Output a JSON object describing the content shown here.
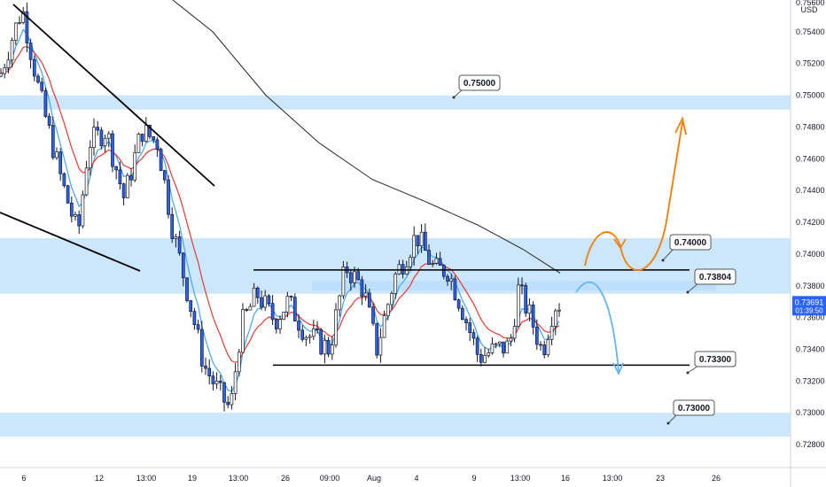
{
  "chart_data": {
    "type": "candlestick",
    "currency": "USD",
    "price_scale": {
      "ylim": [
        0.727,
        0.756
      ],
      "ticks": [
        "0.75400",
        "0.75200",
        "0.75000",
        "0.74800",
        "0.74600",
        "0.74400",
        "0.74200",
        "0.74000",
        "0.73800",
        "0.73600",
        "0.73400",
        "0.73200",
        "0.73000",
        "0.72800"
      ],
      "top_partial_label": "0.75600"
    },
    "time_axis": {
      "labels": [
        "6",
        "12",
        "13:00",
        "19",
        "13:00",
        "26",
        "09:00",
        "Aug",
        "4",
        "9",
        "13:00",
        "16",
        "13:00",
        "23",
        "26"
      ]
    },
    "current_price": {
      "value": "0.73691",
      "countdown": "01:39:50",
      "price": 0.73691
    },
    "zones": [
      {
        "low": 0.7491,
        "high": 0.75
      },
      {
        "low": 0.7375,
        "high": 0.741
      },
      {
        "low": 0.7377,
        "high": 0.7383
      },
      {
        "low": 0.7285,
        "high": 0.73
      }
    ],
    "levels": [
      {
        "label": "0.75000",
        "price": 0.75
      },
      {
        "label": "0.74000",
        "price": 0.74
      },
      {
        "label": "0.73804",
        "price": 0.73804
      },
      {
        "label": "0.73300",
        "price": 0.733
      },
      {
        "label": "0.73000",
        "price": 0.73
      }
    ],
    "range": {
      "top": 0.739,
      "bottom": 0.733
    },
    "colors": {
      "zone": "#bbdefb",
      "up": "#ffffff",
      "down": "#2962ff",
      "wick": "#131722",
      "ema_fast": "#42a5f5",
      "ema_slow": "#e53935",
      "sma_long": "#212121",
      "bull_arrow": "#f57c00",
      "bear_arrow": "#64b5f6",
      "price_tag": "#2962ff"
    }
  }
}
